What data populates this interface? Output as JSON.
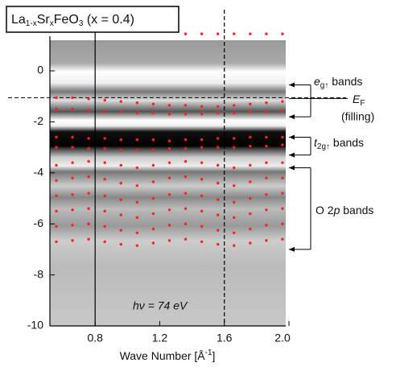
{
  "chart_data": {
    "type": "scatter",
    "title_parts": [
      "La",
      "1-x",
      "Sr",
      "x",
      "FeO",
      "3",
      " (x = 0.4)"
    ],
    "xlabel_parts": [
      "Wave Number [Å",
      "-1",
      "]"
    ],
    "annotation": "hν = 74 eV",
    "xlim": [
      0.52,
      1.98
    ],
    "ylim": [
      -10,
      1.5
    ],
    "xticks": [
      0.8,
      1.2,
      1.6,
      {
        "value": 2,
        "label": "2.0"
      }
    ],
    "yticks": [
      0,
      -2,
      -4,
      -6,
      -8,
      -10
    ],
    "vlines": [
      {
        "value": 0.8,
        "style": "solid"
      },
      {
        "value": 1.6,
        "style": "dashed"
      }
    ],
    "fermi": {
      "parts": [
        "E",
        "F"
      ],
      "note": "(filling)",
      "value": -1.05
    },
    "bands": [
      {
        "parts": [
          "e",
          "g↑",
          " bands"
        ],
        "range": [
          -0.55,
          -1.8
        ]
      },
      {
        "parts": [
          "t",
          "2g↑",
          " bands"
        ],
        "range": [
          -2.6,
          -3.3
        ]
      },
      {
        "parts": [
          "O 2",
          "p",
          " bands"
        ],
        "range": [
          -3.8,
          -7.0
        ]
      }
    ],
    "x": [
      0.56,
      0.66,
      0.76,
      0.86,
      0.96,
      1.06,
      1.16,
      1.26,
      1.36,
      1.46,
      1.56,
      1.66,
      1.76,
      1.86,
      1.96
    ],
    "series": [
      {
        "color": "#ff2020",
        "values": [
          null,
          null,
          null,
          null,
          null,
          null,
          null,
          null,
          1.45,
          1.45,
          1.45,
          1.45,
          1.45,
          1.45,
          1.45
        ]
      },
      {
        "color": "#ff2020",
        "values": [
          -1.05,
          -1.05,
          -1.1,
          -1.15,
          -1.2,
          -1.25,
          -1.3,
          -1.35,
          -1.35,
          -1.4,
          -1.4,
          -1.35,
          -1.3,
          -1.25,
          -1.2
        ]
      },
      {
        "color": "#ff2020",
        "values": [
          -1.5,
          -1.5,
          -1.55,
          -1.6,
          -1.6,
          -1.65,
          -1.65,
          -1.7,
          -1.7,
          -1.7,
          -1.65,
          -1.65,
          -1.6,
          -1.6,
          -1.55
        ]
      },
      {
        "color": "#ff2020",
        "values": [
          -2.6,
          -2.6,
          -2.65,
          -2.65,
          -2.7,
          -2.7,
          -2.7,
          -2.75,
          -2.7,
          -2.7,
          -2.65,
          -2.65,
          -2.6,
          -2.6,
          -2.6
        ]
      },
      {
        "color": "#ff2020",
        "values": [
          -3.0,
          -3.0,
          -3.05,
          -3.05,
          -3.1,
          -3.1,
          -3.1,
          -3.05,
          -3.05,
          -3.0,
          -3.0,
          -3.0,
          -2.95,
          -2.95,
          -2.9
        ]
      },
      {
        "color": "#ff2020",
        "values": [
          -3.7,
          -3.6,
          -3.55,
          -3.6,
          -3.7,
          -3.8,
          -3.7,
          -3.6,
          -3.55,
          -3.6,
          -3.7,
          -3.8,
          -3.7,
          -3.6,
          -3.6
        ]
      },
      {
        "color": "#ff2020",
        "values": [
          -4.3,
          -4.2,
          -4.15,
          -4.25,
          -4.4,
          -4.5,
          -4.35,
          -4.2,
          -4.15,
          -4.25,
          -4.4,
          -4.5,
          -4.35,
          -4.2,
          -4.2
        ]
      },
      {
        "color": "#ff2020",
        "values": [
          -4.9,
          -4.85,
          -4.8,
          -4.9,
          -5.05,
          -5.15,
          -5.0,
          -4.85,
          -4.8,
          -4.9,
          -5.05,
          -5.15,
          -5.0,
          -4.85,
          -4.8
        ]
      },
      {
        "color": "#ff2020",
        "values": [
          -5.5,
          -5.45,
          -5.4,
          -5.5,
          -5.65,
          -5.75,
          -5.6,
          -5.45,
          -5.4,
          -5.5,
          -5.65,
          -5.75,
          -5.6,
          -5.45,
          -5.4
        ]
      },
      {
        "color": "#ff2020",
        "values": [
          -6.1,
          -6.05,
          -6.0,
          -6.1,
          -6.25,
          -6.35,
          -6.2,
          -6.05,
          -6.0,
          -6.1,
          -6.25,
          -6.35,
          -6.2,
          -6.05,
          -6.0
        ]
      },
      {
        "color": "#ff2020",
        "values": [
          -6.7,
          -6.65,
          -6.6,
          -6.7,
          -6.8,
          -6.85,
          -6.75,
          -6.65,
          -6.6,
          -6.7,
          -6.8,
          -6.85,
          -6.75,
          -6.65,
          -6.6
        ]
      }
    ]
  }
}
